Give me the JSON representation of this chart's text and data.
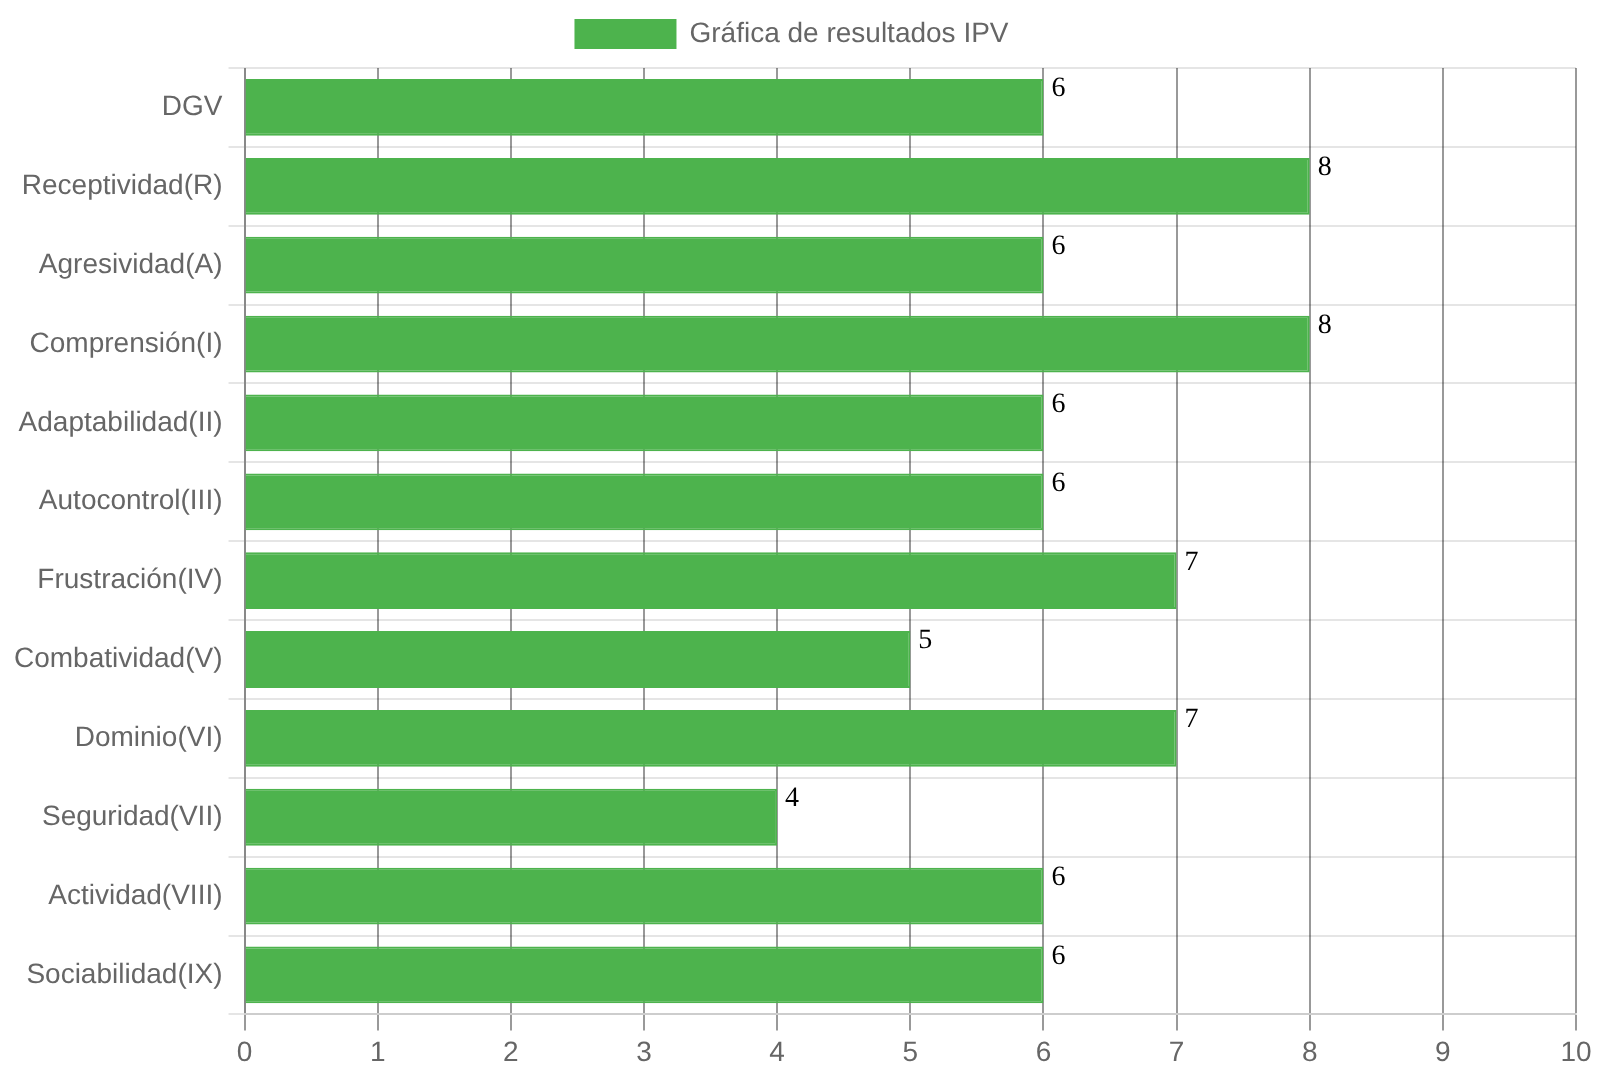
{
  "chart_data": {
    "type": "bar",
    "orientation": "horizontal",
    "categories": [
      "DGV",
      "Receptividad(R)",
      "Agresividad(A)",
      "Comprensión(I)",
      "Adaptabilidad(II)",
      "Autocontrol(III)",
      "Frustración(IV)",
      "Combatividad(V)",
      "Dominio(VI)",
      "Seguridad(VII)",
      "Actividad(VIII)",
      "Sociabilidad(IX)"
    ],
    "series": [
      {
        "name": "Gráfica de resultados IPV",
        "color": "#4db34d",
        "values": [
          6,
          8,
          6,
          8,
          6,
          6,
          7,
          5,
          7,
          4,
          6,
          6
        ]
      }
    ],
    "xlim": [
      0,
      10
    ],
    "xticks": [
      0,
      1,
      2,
      3,
      4,
      5,
      6,
      7,
      8,
      9,
      10
    ],
    "grid": true,
    "legend": "top",
    "data_labels": true
  }
}
